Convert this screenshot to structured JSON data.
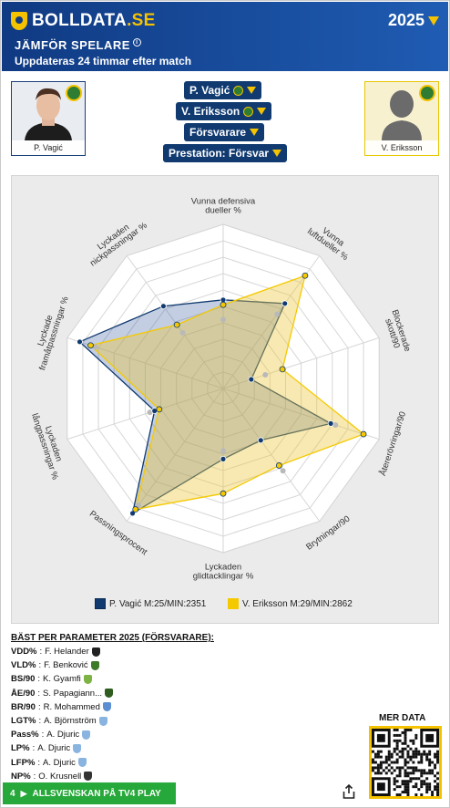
{
  "header": {
    "logo_text": "BOLLDATA",
    "logo_suffix": ".SE",
    "year": "2025",
    "title": "JÄMFÖR SPELARE",
    "info": "i",
    "subtitle": "Uppdateras 24 timmar efter match"
  },
  "players": {
    "left": {
      "name": "P. Vagić"
    },
    "right": {
      "name": "V. Eriksson"
    }
  },
  "selectors": {
    "player1": "P. Vagić",
    "player2": "V. Eriksson",
    "position": "Försvarare",
    "mode": "Prestation: Försvar"
  },
  "colors": {
    "player1": "#103a70",
    "player2": "#f5c900",
    "header": "#1f5cb3",
    "footer": "#27a83a"
  },
  "chart_data": {
    "type": "radar",
    "axes": [
      "Vunna defensiva dueller %",
      "Vunna luftdueller %",
      "Blockerade skott/90",
      "Återerövringar/90",
      "Brytningar/90",
      "Lyckaden glidtacklingar %",
      "Passningsprocent",
      "Lyckaden långpassningar %",
      "Lyckade framåtpassningar %",
      "Lyckaden nickpassningar %"
    ],
    "axis_label_lines": [
      [
        "Vunna defensiva",
        "dueller %"
      ],
      [
        "Vunna",
        "luftdueller %"
      ],
      [
        "Blockerade",
        "skott/90"
      ],
      [
        "Återerövringar/90"
      ],
      [
        "Brytningar/90"
      ],
      [
        "Lyckaden",
        "glidtacklingar %"
      ],
      [
        "Passningsprocent"
      ],
      [
        "Lyckaden",
        "långpassningar %"
      ],
      [
        "Lyckade",
        "framåtpassningar %"
      ],
      [
        "Lyckaden",
        "nickpassningar %"
      ]
    ],
    "range": [
      0,
      1
    ],
    "series": [
      {
        "name": "P. Vagić M:25/MIN:2351",
        "values": [
          0.54,
          0.64,
          0.18,
          0.69,
          0.39,
          0.43,
          0.94,
          0.44,
          0.92,
          0.62
        ]
      },
      {
        "name": "V. Eriksson M:29/MIN:2862",
        "values": [
          0.51,
          0.85,
          0.38,
          0.9,
          0.58,
          0.64,
          0.91,
          0.41,
          0.85,
          0.48
        ]
      }
    ],
    "averages": [
      0.42,
      0.56,
      0.27,
      0.72,
      0.62,
      0.38,
      0.88,
      0.47,
      0.82,
      0.42
    ],
    "grid_rings": 10
  },
  "best": {
    "title": "BÄST PER PARAMETER 2025 (FÖRSVARARE):",
    "rows": [
      {
        "key": "VDD%",
        "name": "F. Helander",
        "club_color": "#222222"
      },
      {
        "key": "VLD%",
        "name": "F. Benković",
        "club_color": "#3d7a2a"
      },
      {
        "key": "BS/90",
        "name": "K. Gyamfi",
        "club_color": "#7cb342"
      },
      {
        "key": "ÅE/90",
        "name": "S. Papagiann...",
        "club_color": "#2e5d1f"
      },
      {
        "key": "BR/90",
        "name": "R. Mohammed",
        "club_color": "#5b8fd1"
      },
      {
        "key": "LGT%",
        "name": "A. Björnström",
        "club_color": "#8ab4e0"
      },
      {
        "key": "Pass%",
        "name": "A. Djuric",
        "club_color": "#8ab4e0"
      },
      {
        "key": "LP%",
        "name": "A. Djuric",
        "club_color": "#8ab4e0"
      },
      {
        "key": "LFP%",
        "name": "A. Djuric",
        "club_color": "#8ab4e0"
      },
      {
        "key": "NP%",
        "name": "O. Krusnell",
        "club_color": "#333333"
      }
    ]
  },
  "mer_data": "MER DATA",
  "footer": {
    "label": "ALLSVENSKAN PÅ TV4 PLAY",
    "icon": "4"
  }
}
